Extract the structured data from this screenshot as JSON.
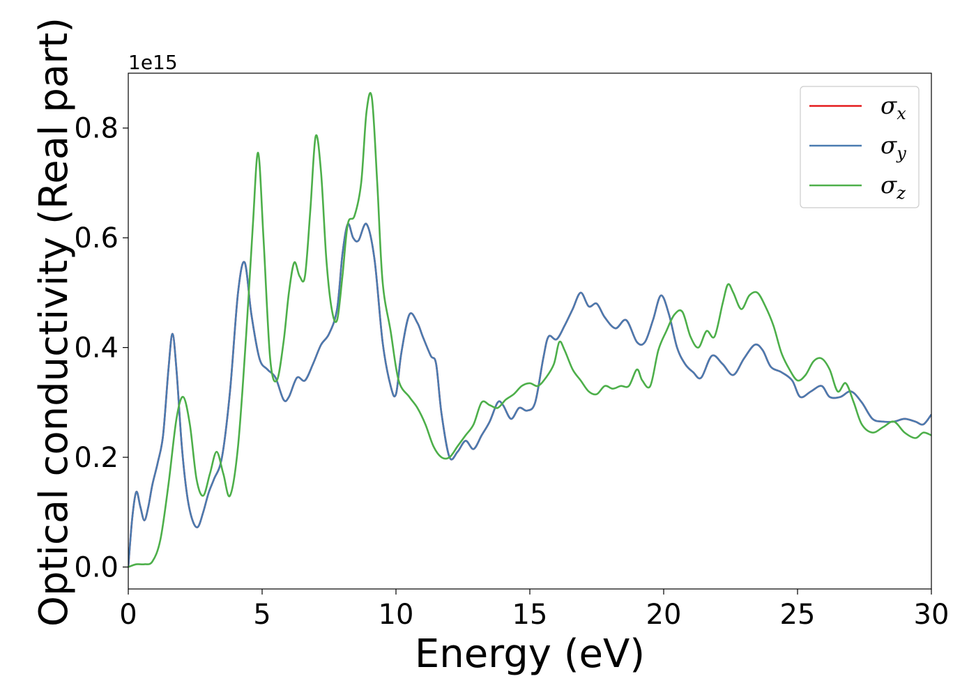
{
  "chart_data": {
    "type": "line",
    "xlabel": "Energy (eV)",
    "ylabel": "Optical conductivity (Real part)",
    "y_offset_text": "1e15",
    "xlim": [
      0,
      30
    ],
    "ylim": [
      -0.04,
      0.9
    ],
    "xticks": [
      0,
      5,
      10,
      15,
      20,
      25,
      30
    ],
    "xtick_labels": [
      "0",
      "5",
      "10",
      "15",
      "20",
      "25",
      "30"
    ],
    "yticks": [
      0.0,
      0.2,
      0.4,
      0.6,
      0.8
    ],
    "ytick_labels": [
      "0.0",
      "0.2",
      "0.4",
      "0.6",
      "0.8"
    ],
    "grid": false,
    "legend_position": "top-right",
    "series": [
      {
        "name": "σx",
        "symbol": "σ",
        "subscript": "x",
        "color": "#e41a1c",
        "x": [
          0,
          0.15,
          0.3,
          0.45,
          0.6,
          0.75,
          0.9,
          1.1,
          1.3,
          1.5,
          1.65,
          1.8,
          2.0,
          2.2,
          2.4,
          2.6,
          2.8,
          3.0,
          3.2,
          3.5,
          3.8,
          4.1,
          4.35,
          4.6,
          4.9,
          5.2,
          5.5,
          5.8,
          6.0,
          6.3,
          6.6,
          6.9,
          7.2,
          7.5,
          7.8,
          8.0,
          8.2,
          8.4,
          8.6,
          8.9,
          9.2,
          9.5,
          9.8,
          10.0,
          10.2,
          10.5,
          10.8,
          11.0,
          11.3,
          11.5,
          11.7,
          12.0,
          12.3,
          12.6,
          12.9,
          13.2,
          13.5,
          13.8,
          14.0,
          14.3,
          14.6,
          14.9,
          15.2,
          15.5,
          15.7,
          16.0,
          16.3,
          16.6,
          16.9,
          17.2,
          17.5,
          17.8,
          18.2,
          18.6,
          19.0,
          19.3,
          19.6,
          19.9,
          20.2,
          20.5,
          20.8,
          21.1,
          21.4,
          21.8,
          22.2,
          22.6,
          23.0,
          23.4,
          23.7,
          24.0,
          24.4,
          24.8,
          25.1,
          25.5,
          25.9,
          26.2,
          26.6,
          27.0,
          27.4,
          27.8,
          28.2,
          28.6,
          29.0,
          29.4,
          29.7,
          30.0
        ],
        "y": [
          0.0,
          0.09,
          0.137,
          0.11,
          0.085,
          0.11,
          0.15,
          0.19,
          0.24,
          0.36,
          0.425,
          0.36,
          0.22,
          0.13,
          0.085,
          0.073,
          0.1,
          0.135,
          0.16,
          0.2,
          0.32,
          0.5,
          0.555,
          0.46,
          0.38,
          0.36,
          0.345,
          0.305,
          0.31,
          0.345,
          0.34,
          0.37,
          0.405,
          0.425,
          0.47,
          0.57,
          0.625,
          0.6,
          0.595,
          0.625,
          0.56,
          0.41,
          0.33,
          0.315,
          0.39,
          0.46,
          0.445,
          0.42,
          0.385,
          0.37,
          0.28,
          0.2,
          0.21,
          0.23,
          0.215,
          0.24,
          0.265,
          0.3,
          0.295,
          0.27,
          0.29,
          0.285,
          0.3,
          0.38,
          0.42,
          0.415,
          0.44,
          0.47,
          0.5,
          0.475,
          0.48,
          0.455,
          0.435,
          0.45,
          0.41,
          0.41,
          0.45,
          0.495,
          0.46,
          0.4,
          0.37,
          0.355,
          0.345,
          0.385,
          0.37,
          0.35,
          0.38,
          0.405,
          0.395,
          0.365,
          0.355,
          0.34,
          0.31,
          0.32,
          0.33,
          0.31,
          0.31,
          0.32,
          0.3,
          0.27,
          0.265,
          0.265,
          0.27,
          0.265,
          0.26,
          0.278
        ]
      },
      {
        "name": "σy",
        "symbol": "σ",
        "subscript": "y",
        "color": "#4a7bb0",
        "x": [
          0,
          0.15,
          0.3,
          0.45,
          0.6,
          0.75,
          0.9,
          1.1,
          1.3,
          1.5,
          1.65,
          1.8,
          2.0,
          2.2,
          2.4,
          2.6,
          2.8,
          3.0,
          3.2,
          3.5,
          3.8,
          4.1,
          4.35,
          4.6,
          4.9,
          5.2,
          5.5,
          5.8,
          6.0,
          6.3,
          6.6,
          6.9,
          7.2,
          7.5,
          7.8,
          8.0,
          8.2,
          8.4,
          8.6,
          8.9,
          9.2,
          9.5,
          9.8,
          10.0,
          10.2,
          10.5,
          10.8,
          11.0,
          11.3,
          11.5,
          11.7,
          12.0,
          12.3,
          12.6,
          12.9,
          13.2,
          13.5,
          13.8,
          14.0,
          14.3,
          14.6,
          14.9,
          15.2,
          15.5,
          15.7,
          16.0,
          16.3,
          16.6,
          16.9,
          17.2,
          17.5,
          17.8,
          18.2,
          18.6,
          19.0,
          19.3,
          19.6,
          19.9,
          20.2,
          20.5,
          20.8,
          21.1,
          21.4,
          21.8,
          22.2,
          22.6,
          23.0,
          23.4,
          23.7,
          24.0,
          24.4,
          24.8,
          25.1,
          25.5,
          25.9,
          26.2,
          26.6,
          27.0,
          27.4,
          27.8,
          28.2,
          28.6,
          29.0,
          29.4,
          29.7,
          30.0
        ],
        "y": [
          0.0,
          0.09,
          0.137,
          0.11,
          0.085,
          0.11,
          0.15,
          0.19,
          0.24,
          0.36,
          0.425,
          0.36,
          0.22,
          0.13,
          0.085,
          0.073,
          0.1,
          0.135,
          0.16,
          0.2,
          0.32,
          0.5,
          0.555,
          0.46,
          0.38,
          0.36,
          0.345,
          0.305,
          0.31,
          0.345,
          0.34,
          0.37,
          0.405,
          0.425,
          0.47,
          0.57,
          0.625,
          0.6,
          0.595,
          0.625,
          0.56,
          0.41,
          0.33,
          0.315,
          0.39,
          0.46,
          0.445,
          0.42,
          0.385,
          0.37,
          0.28,
          0.2,
          0.21,
          0.23,
          0.215,
          0.24,
          0.265,
          0.3,
          0.295,
          0.27,
          0.29,
          0.285,
          0.3,
          0.38,
          0.42,
          0.415,
          0.44,
          0.47,
          0.5,
          0.475,
          0.48,
          0.455,
          0.435,
          0.45,
          0.41,
          0.41,
          0.45,
          0.495,
          0.46,
          0.4,
          0.37,
          0.355,
          0.345,
          0.385,
          0.37,
          0.35,
          0.38,
          0.405,
          0.395,
          0.365,
          0.355,
          0.34,
          0.31,
          0.32,
          0.33,
          0.31,
          0.31,
          0.32,
          0.3,
          0.27,
          0.265,
          0.265,
          0.27,
          0.265,
          0.26,
          0.278
        ]
      },
      {
        "name": "σz",
        "symbol": "σ",
        "subscript": "z",
        "color": "#4daf4a",
        "x": [
          0,
          0.3,
          0.6,
          0.9,
          1.2,
          1.5,
          1.8,
          2.05,
          2.3,
          2.55,
          2.8,
          3.05,
          3.3,
          3.55,
          3.8,
          4.1,
          4.4,
          4.65,
          4.85,
          5.05,
          5.3,
          5.55,
          5.8,
          6.0,
          6.2,
          6.4,
          6.6,
          6.8,
          7.0,
          7.2,
          7.4,
          7.6,
          7.8,
          8.0,
          8.2,
          8.45,
          8.7,
          8.9,
          9.1,
          9.3,
          9.5,
          9.8,
          10.1,
          10.5,
          10.8,
          11.1,
          11.4,
          11.7,
          12.0,
          12.3,
          12.6,
          12.9,
          13.2,
          13.5,
          13.8,
          14.1,
          14.4,
          14.7,
          15.0,
          15.3,
          15.6,
          15.9,
          16.1,
          16.3,
          16.6,
          16.9,
          17.2,
          17.5,
          17.8,
          18.1,
          18.4,
          18.7,
          19.0,
          19.2,
          19.5,
          19.8,
          20.1,
          20.4,
          20.7,
          21.0,
          21.3,
          21.6,
          21.9,
          22.2,
          22.4,
          22.6,
          22.9,
          23.2,
          23.5,
          23.8,
          24.1,
          24.4,
          24.7,
          25.0,
          25.3,
          25.6,
          25.9,
          26.2,
          26.5,
          26.8,
          27.1,
          27.4,
          27.8,
          28.2,
          28.6,
          29.0,
          29.4,
          29.7,
          30.0
        ],
        "y": [
          0.0,
          0.005,
          0.005,
          0.01,
          0.05,
          0.15,
          0.27,
          0.31,
          0.26,
          0.16,
          0.13,
          0.17,
          0.21,
          0.17,
          0.13,
          0.22,
          0.42,
          0.62,
          0.755,
          0.6,
          0.38,
          0.34,
          0.41,
          0.5,
          0.555,
          0.53,
          0.53,
          0.65,
          0.785,
          0.72,
          0.56,
          0.47,
          0.45,
          0.53,
          0.625,
          0.64,
          0.7,
          0.83,
          0.855,
          0.7,
          0.52,
          0.43,
          0.34,
          0.31,
          0.29,
          0.26,
          0.22,
          0.2,
          0.2,
          0.22,
          0.24,
          0.26,
          0.3,
          0.295,
          0.29,
          0.305,
          0.315,
          0.33,
          0.335,
          0.33,
          0.345,
          0.37,
          0.41,
          0.395,
          0.36,
          0.34,
          0.32,
          0.315,
          0.33,
          0.325,
          0.33,
          0.33,
          0.36,
          0.34,
          0.33,
          0.395,
          0.43,
          0.46,
          0.465,
          0.42,
          0.4,
          0.43,
          0.42,
          0.48,
          0.515,
          0.5,
          0.47,
          0.495,
          0.5,
          0.475,
          0.44,
          0.39,
          0.36,
          0.34,
          0.35,
          0.375,
          0.38,
          0.36,
          0.32,
          0.335,
          0.3,
          0.26,
          0.245,
          0.255,
          0.265,
          0.245,
          0.235,
          0.245,
          0.24
        ]
      }
    ]
  }
}
